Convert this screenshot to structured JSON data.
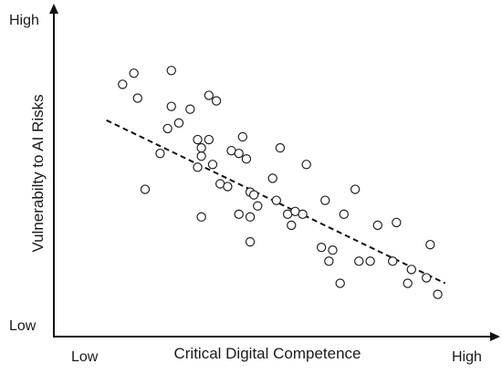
{
  "chart_data": {
    "type": "scatter",
    "title": "",
    "xlabel": "Critical Digital Competence",
    "ylabel": "Vulnerabilty to AI Risks",
    "x_tick_labels": {
      "low": "Low",
      "high": "High"
    },
    "y_tick_labels": {
      "low": "Low",
      "high": "High"
    },
    "xlim": [
      0,
      100
    ],
    "ylim": [
      0,
      100
    ],
    "grid": false,
    "legend": "none",
    "trendline": {
      "style": "dashed",
      "start": [
        7.7,
        73
      ],
      "end": [
        98,
        14
      ]
    },
    "series": [
      {
        "points": [
          [
            12,
            86
          ],
          [
            15,
            90
          ],
          [
            16,
            81
          ],
          [
            18,
            48
          ],
          [
            22,
            61
          ],
          [
            24,
            70
          ],
          [
            25,
            78
          ],
          [
            25,
            91
          ],
          [
            27,
            72
          ],
          [
            30,
            77
          ],
          [
            32,
            66
          ],
          [
            32,
            56
          ],
          [
            33,
            38
          ],
          [
            33,
            63
          ],
          [
            33,
            60
          ],
          [
            35,
            82
          ],
          [
            35,
            66
          ],
          [
            36,
            57
          ],
          [
            37,
            80
          ],
          [
            38,
            50
          ],
          [
            40,
            49
          ],
          [
            41,
            62
          ],
          [
            43,
            61
          ],
          [
            43,
            39
          ],
          [
            44,
            67
          ],
          [
            45,
            59
          ],
          [
            46,
            38
          ],
          [
            46,
            29
          ],
          [
            46,
            47
          ],
          [
            47,
            46
          ],
          [
            48,
            42
          ],
          [
            52,
            52
          ],
          [
            53,
            44
          ],
          [
            54,
            63
          ],
          [
            56,
            39
          ],
          [
            57,
            35
          ],
          [
            58,
            40
          ],
          [
            60,
            39
          ],
          [
            61,
            57
          ],
          [
            65,
            27
          ],
          [
            66,
            44
          ],
          [
            67,
            22
          ],
          [
            68,
            26
          ],
          [
            70,
            14
          ],
          [
            71,
            39
          ],
          [
            74,
            48
          ],
          [
            75,
            22
          ],
          [
            78,
            22
          ],
          [
            80,
            35
          ],
          [
            84,
            22
          ],
          [
            85,
            36
          ],
          [
            88,
            14
          ],
          [
            89,
            19
          ],
          [
            93,
            16
          ],
          [
            94,
            28
          ],
          [
            96,
            10
          ]
        ]
      }
    ]
  }
}
